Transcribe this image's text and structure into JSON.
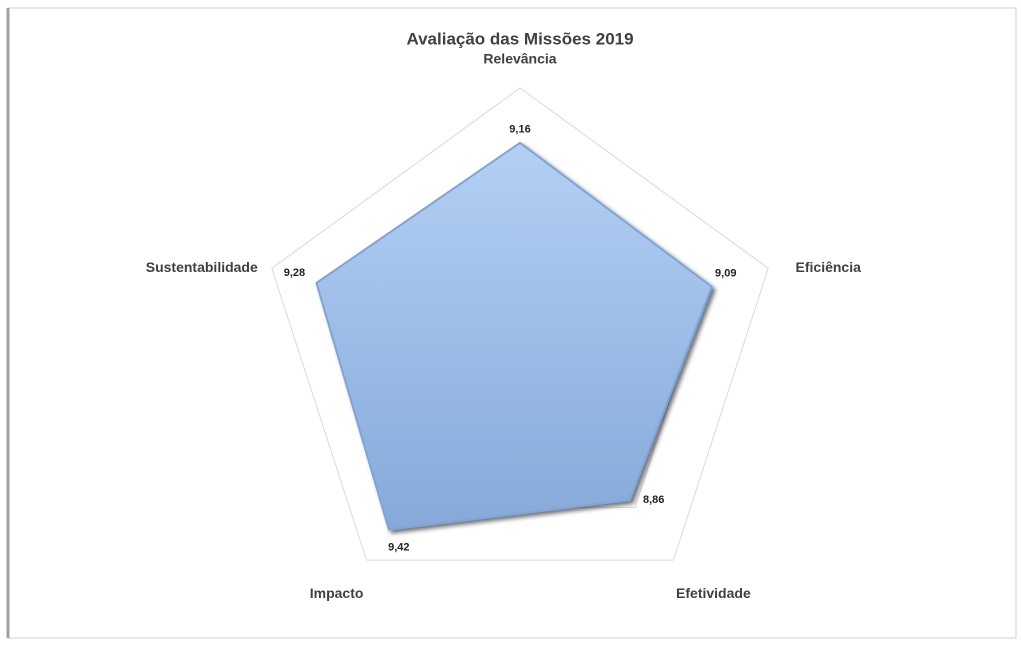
{
  "chart_data": {
    "type": "radar",
    "title": "Avaliação das Missões 2019",
    "categories": [
      "Relevância",
      "Eficiência",
      "Efetividade",
      "Impacto",
      "Sustentabilidade"
    ],
    "values": [
      9.16,
      9.09,
      8.86,
      9.42,
      9.28
    ],
    "value_labels": [
      "9,16",
      "9,09",
      "8,86",
      "9,42",
      "9,28"
    ],
    "color": "#9dbfea",
    "ylim": [
      6,
      10
    ],
    "yticks": [
      6,
      7,
      8,
      9,
      10
    ],
    "grid": true
  }
}
